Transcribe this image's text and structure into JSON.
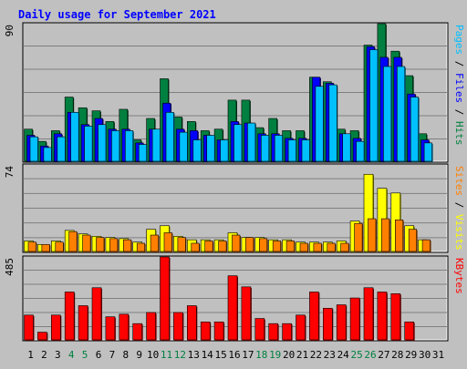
{
  "chart_data": [
    {
      "type": "bar",
      "title": "Daily usage for September 2021",
      "panel": "hits-files-pages",
      "ylabel_parts": [
        "Pages",
        "Files",
        "Hits"
      ],
      "ymax_label": "90",
      "ylim": [
        0,
        90
      ],
      "categories": [
        "1",
        "2",
        "3",
        "4",
        "5",
        "6",
        "7",
        "8",
        "9",
        "10",
        "11",
        "12",
        "13",
        "14",
        "15",
        "16",
        "17",
        "18",
        "19",
        "20",
        "21",
        "22",
        "23",
        "24",
        "25",
        "26",
        "27",
        "28",
        "29",
        "30",
        "31"
      ],
      "series": [
        {
          "name": "Hits",
          "color": "#008040",
          "values": [
            21,
            13,
            20,
            42,
            35,
            33,
            26,
            34,
            14,
            28,
            54,
            29,
            26,
            20,
            21,
            40,
            40,
            22,
            28,
            20,
            20,
            55,
            52,
            21,
            20,
            76,
            90,
            72,
            56,
            18,
            0
          ]
        },
        {
          "name": "Files",
          "color": "#0000ff",
          "values": [
            17,
            10,
            18,
            32,
            24,
            28,
            21,
            21,
            12,
            21,
            38,
            21,
            20,
            17,
            14,
            26,
            25,
            18,
            18,
            15,
            15,
            55,
            51,
            18,
            15,
            75,
            68,
            68,
            44,
            14,
            0
          ]
        },
        {
          "name": "Pages",
          "color": "#00c0ff",
          "values": [
            16,
            9,
            16,
            32,
            23,
            24,
            20,
            20,
            11,
            21,
            32,
            19,
            14,
            17,
            14,
            24,
            25,
            17,
            17,
            14,
            14,
            49,
            50,
            18,
            13,
            73,
            62,
            62,
            42,
            12,
            0
          ]
        }
      ],
      "weekend_days": [
        "4",
        "5",
        "11",
        "12",
        "18",
        "19",
        "25",
        "26"
      ]
    },
    {
      "type": "bar",
      "panel": "visits-sites",
      "ylabel_parts": [
        "Sites",
        "Visits"
      ],
      "ymax_label": "74",
      "ylim": [
        0,
        74
      ],
      "series": [
        {
          "name": "Visits",
          "color": "#ffff00",
          "values": [
            9,
            6,
            9,
            18,
            15,
            13,
            12,
            11,
            8,
            19,
            22,
            13,
            10,
            10,
            10,
            16,
            12,
            12,
            10,
            10,
            8,
            8,
            8,
            9,
            26,
            66,
            54,
            50,
            22,
            10,
            0
          ]
        },
        {
          "name": "Sites",
          "color": "#ff8000",
          "values": [
            8,
            6,
            8,
            17,
            14,
            12,
            11,
            10,
            7,
            14,
            16,
            12,
            7,
            9,
            9,
            14,
            12,
            11,
            9,
            9,
            7,
            7,
            7,
            7,
            24,
            28,
            28,
            27,
            19,
            10,
            0
          ]
        }
      ]
    },
    {
      "type": "bar",
      "panel": "kbytes",
      "ylabel_parts": [
        "KBytes"
      ],
      "ymax_label": "485",
      "ylim": [
        0,
        485
      ],
      "series": [
        {
          "name": "KBytes",
          "color": "#ff0000",
          "values": [
            145,
            45,
            145,
            280,
            200,
            305,
            135,
            150,
            95,
            160,
            485,
            160,
            200,
            105,
            105,
            375,
            310,
            125,
            95,
            95,
            145,
            280,
            185,
            205,
            245,
            305,
            280,
            270,
            105,
            0,
            0
          ]
        }
      ]
    }
  ]
}
